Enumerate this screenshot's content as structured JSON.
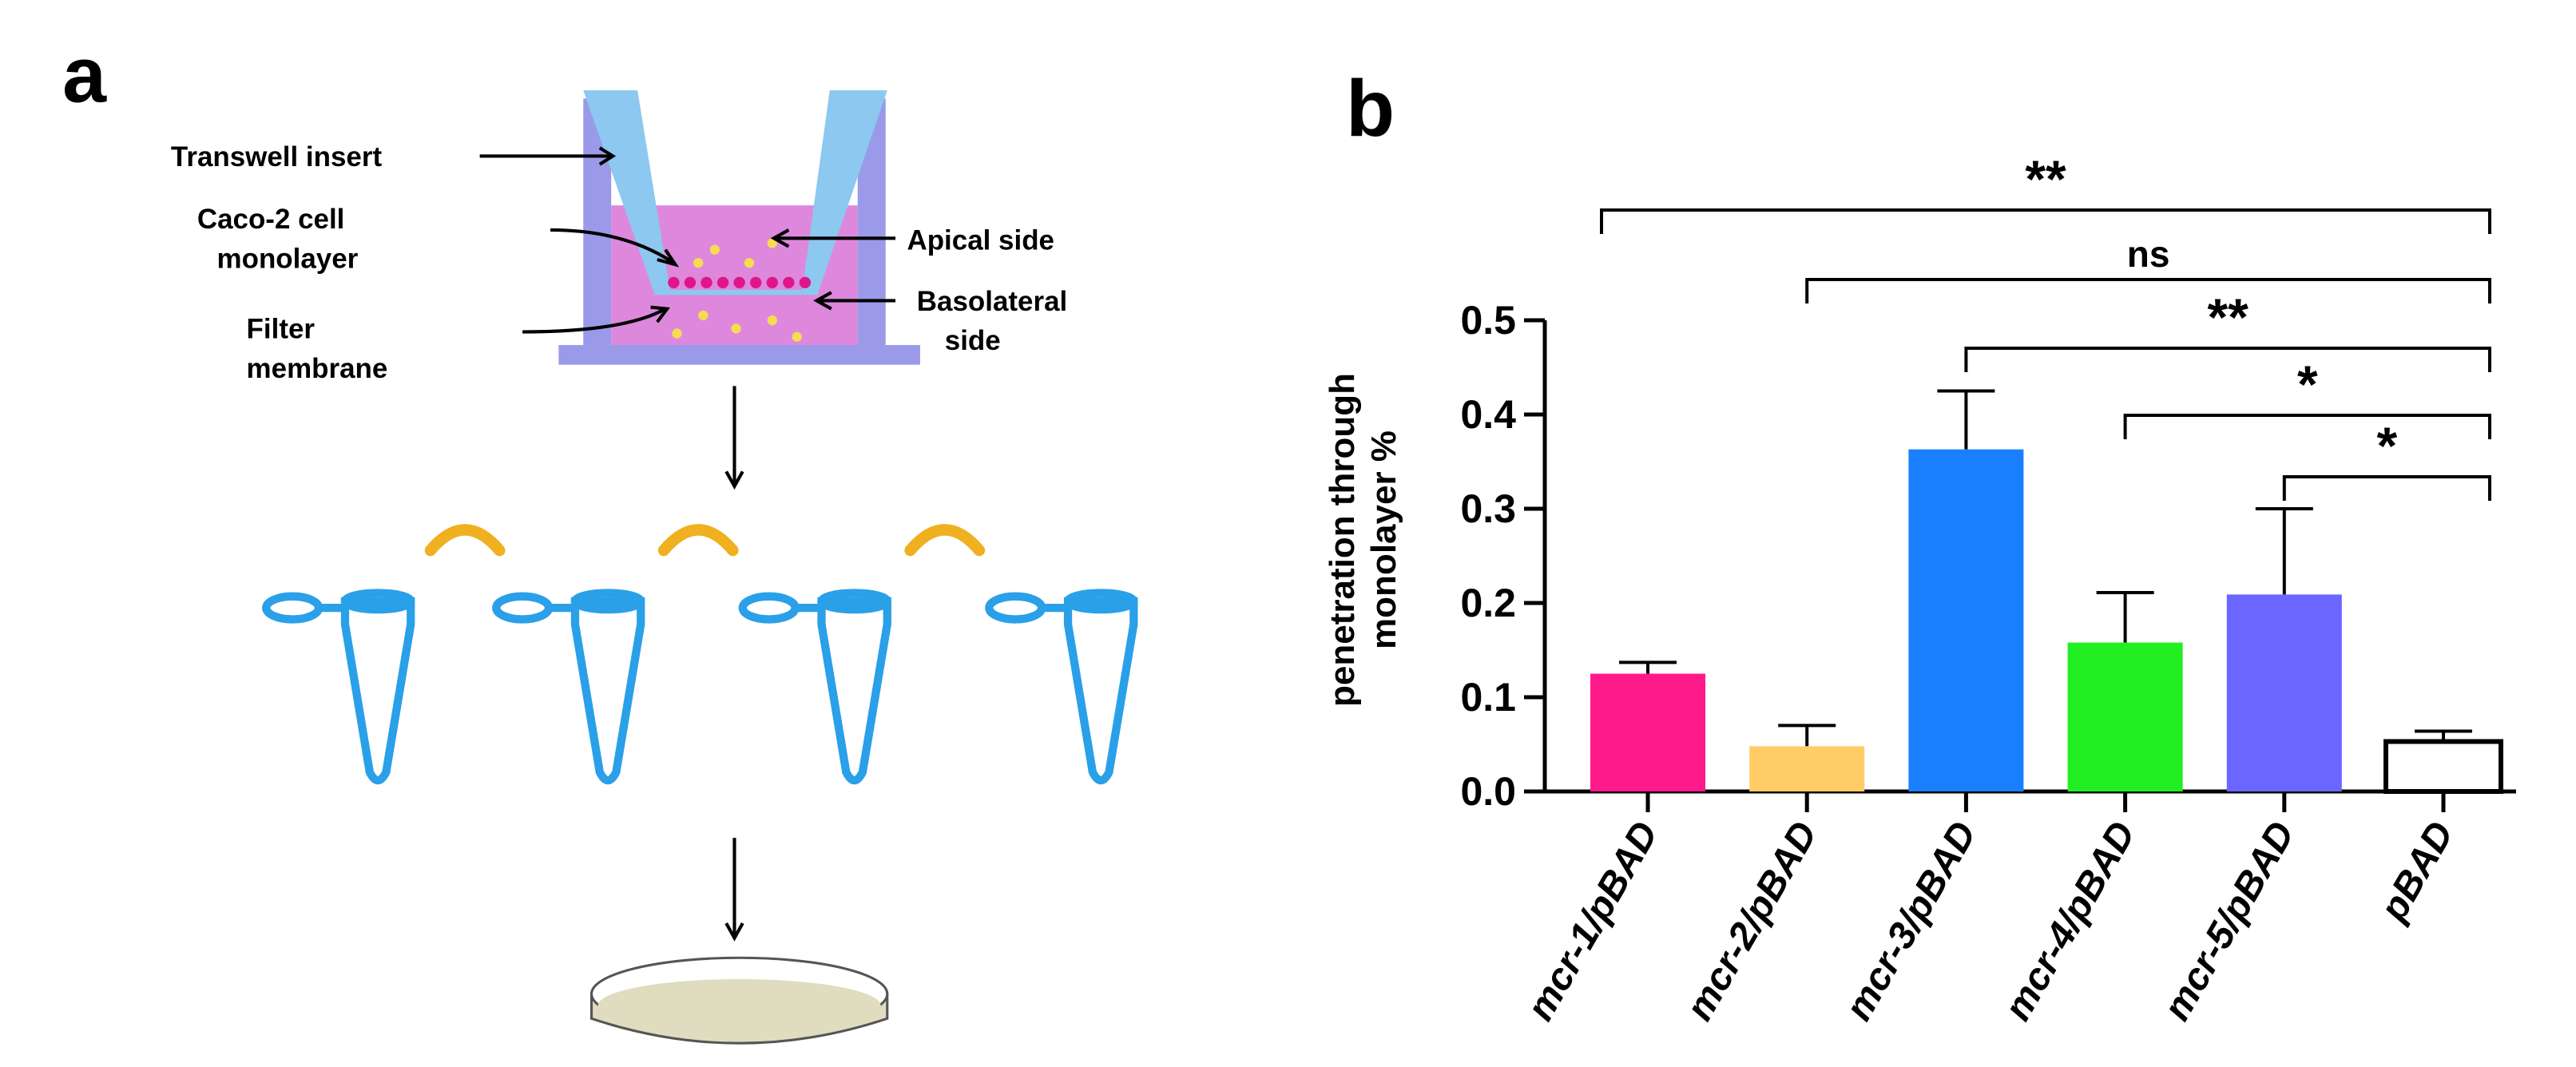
{
  "panel_a": {
    "label": "a",
    "labels": [
      [
        "Transwell insert"
      ],
      [
        "Caco-2 cell",
        "monolayer"
      ],
      [
        "Apical side"
      ],
      [
        "Basolateral",
        "side"
      ],
      [
        "Filter",
        "membrane"
      ]
    ]
  },
  "chart_data": {
    "type": "bar",
    "panel_label": "b",
    "ylabel": [
      "penetration through",
      "monolayer %"
    ],
    "categories": [
      "mcr-1/pBAD",
      "mcr-2/pBAD",
      "mcr-3/pBAD",
      "mcr-4/pBAD",
      "mcr-5/pBAD",
      "pBAD"
    ],
    "values": [
      0.125,
      0.048,
      0.363,
      0.158,
      0.209,
      0.053
    ],
    "errors": [
      0.012,
      0.022,
      0.062,
      0.053,
      0.091,
      0.011
    ],
    "colors": [
      "#ff1a8c",
      "#ffcc66",
      "#1a7fff",
      "#22ee22",
      "#6b66ff",
      "#ffffff"
    ],
    "ylim": [
      0,
      0.5
    ],
    "yticks": [
      {
        "value": 0,
        "label": "0.0"
      },
      0.1,
      0.2,
      0.3,
      0.4,
      0.5
    ],
    "annotations": [
      {
        "label": "**",
        "from": 0,
        "to": 5
      },
      {
        "label": "ns",
        "from": 1,
        "to": 5
      },
      {
        "label": "**",
        "from": 2,
        "to": 5
      },
      {
        "label": "*",
        "from": 3,
        "to": 5
      },
      {
        "label": "*",
        "from": 4,
        "to": 5
      }
    ]
  }
}
